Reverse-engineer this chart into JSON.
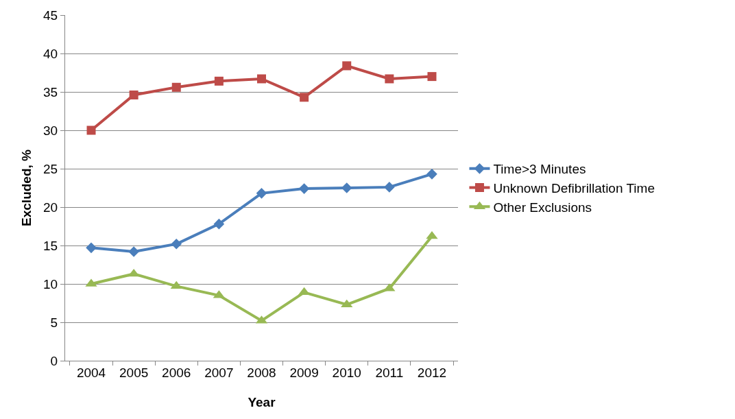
{
  "chart_data": {
    "type": "line",
    "xlabel": "Year",
    "ylabel": "Excluded, %",
    "categories": [
      "2004",
      "2005",
      "2006",
      "2007",
      "2008",
      "2009",
      "2010",
      "2011",
      "2012"
    ],
    "series": [
      {
        "name": "Time>3 Minutes",
        "color": "#4a7ebb",
        "marker": "diamond",
        "values": [
          14.7,
          14.2,
          15.2,
          17.8,
          21.8,
          22.4,
          22.5,
          22.6,
          24.3
        ]
      },
      {
        "name": "Unknown Defibrillation Time",
        "color": "#be4b48",
        "marker": "square",
        "values": [
          30,
          34.6,
          35.6,
          36.4,
          36.7,
          34.3,
          38.4,
          36.7,
          37
        ]
      },
      {
        "name": "Other Exclusions",
        "color": "#98b954",
        "marker": "triangle",
        "values": [
          10,
          11.3,
          9.7,
          8.5,
          5.2,
          8.9,
          7.3,
          9.4,
          16.2
        ]
      }
    ],
    "ylim": [
      0,
      45
    ],
    "yticks": [
      0,
      5,
      10,
      15,
      20,
      25,
      30,
      35,
      40,
      45
    ],
    "grid": "y",
    "legend": "right",
    "line_style": "solid"
  }
}
